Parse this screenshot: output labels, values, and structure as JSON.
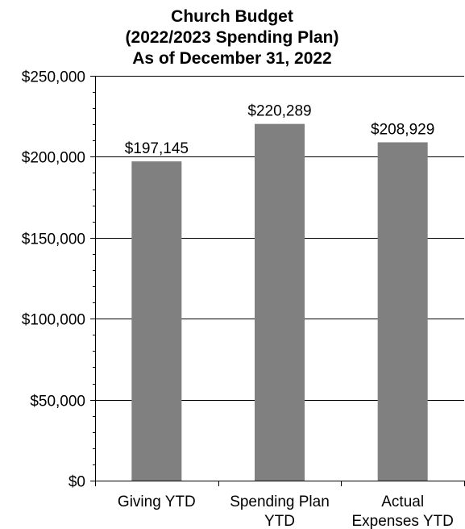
{
  "chart_data": {
    "type": "bar",
    "title_lines": [
      "Church Budget",
      "(2022/2023 Spending Plan)",
      "As of December 31, 2022"
    ],
    "category_lines": [
      [
        "Giving YTD"
      ],
      [
        "Spending Plan",
        "YTD"
      ],
      [
        "Actual",
        "Expenses YTD"
      ]
    ],
    "values": [
      197145,
      220289,
      208929
    ],
    "data_labels": [
      "$197,145",
      "$220,289",
      "$208,929"
    ],
    "yticks": [
      0,
      50000,
      100000,
      150000,
      200000,
      250000
    ],
    "ytick_labels": [
      "$0",
      "$50,000",
      "$100,000",
      "$150,000",
      "$200,000",
      "$250,000"
    ],
    "ylim": [
      0,
      250000
    ],
    "minor_tick_step": 10000,
    "grid": true,
    "legend": "none",
    "bar_color": "#808080",
    "grid_color": "#000000",
    "axis_color": "#000000"
  }
}
